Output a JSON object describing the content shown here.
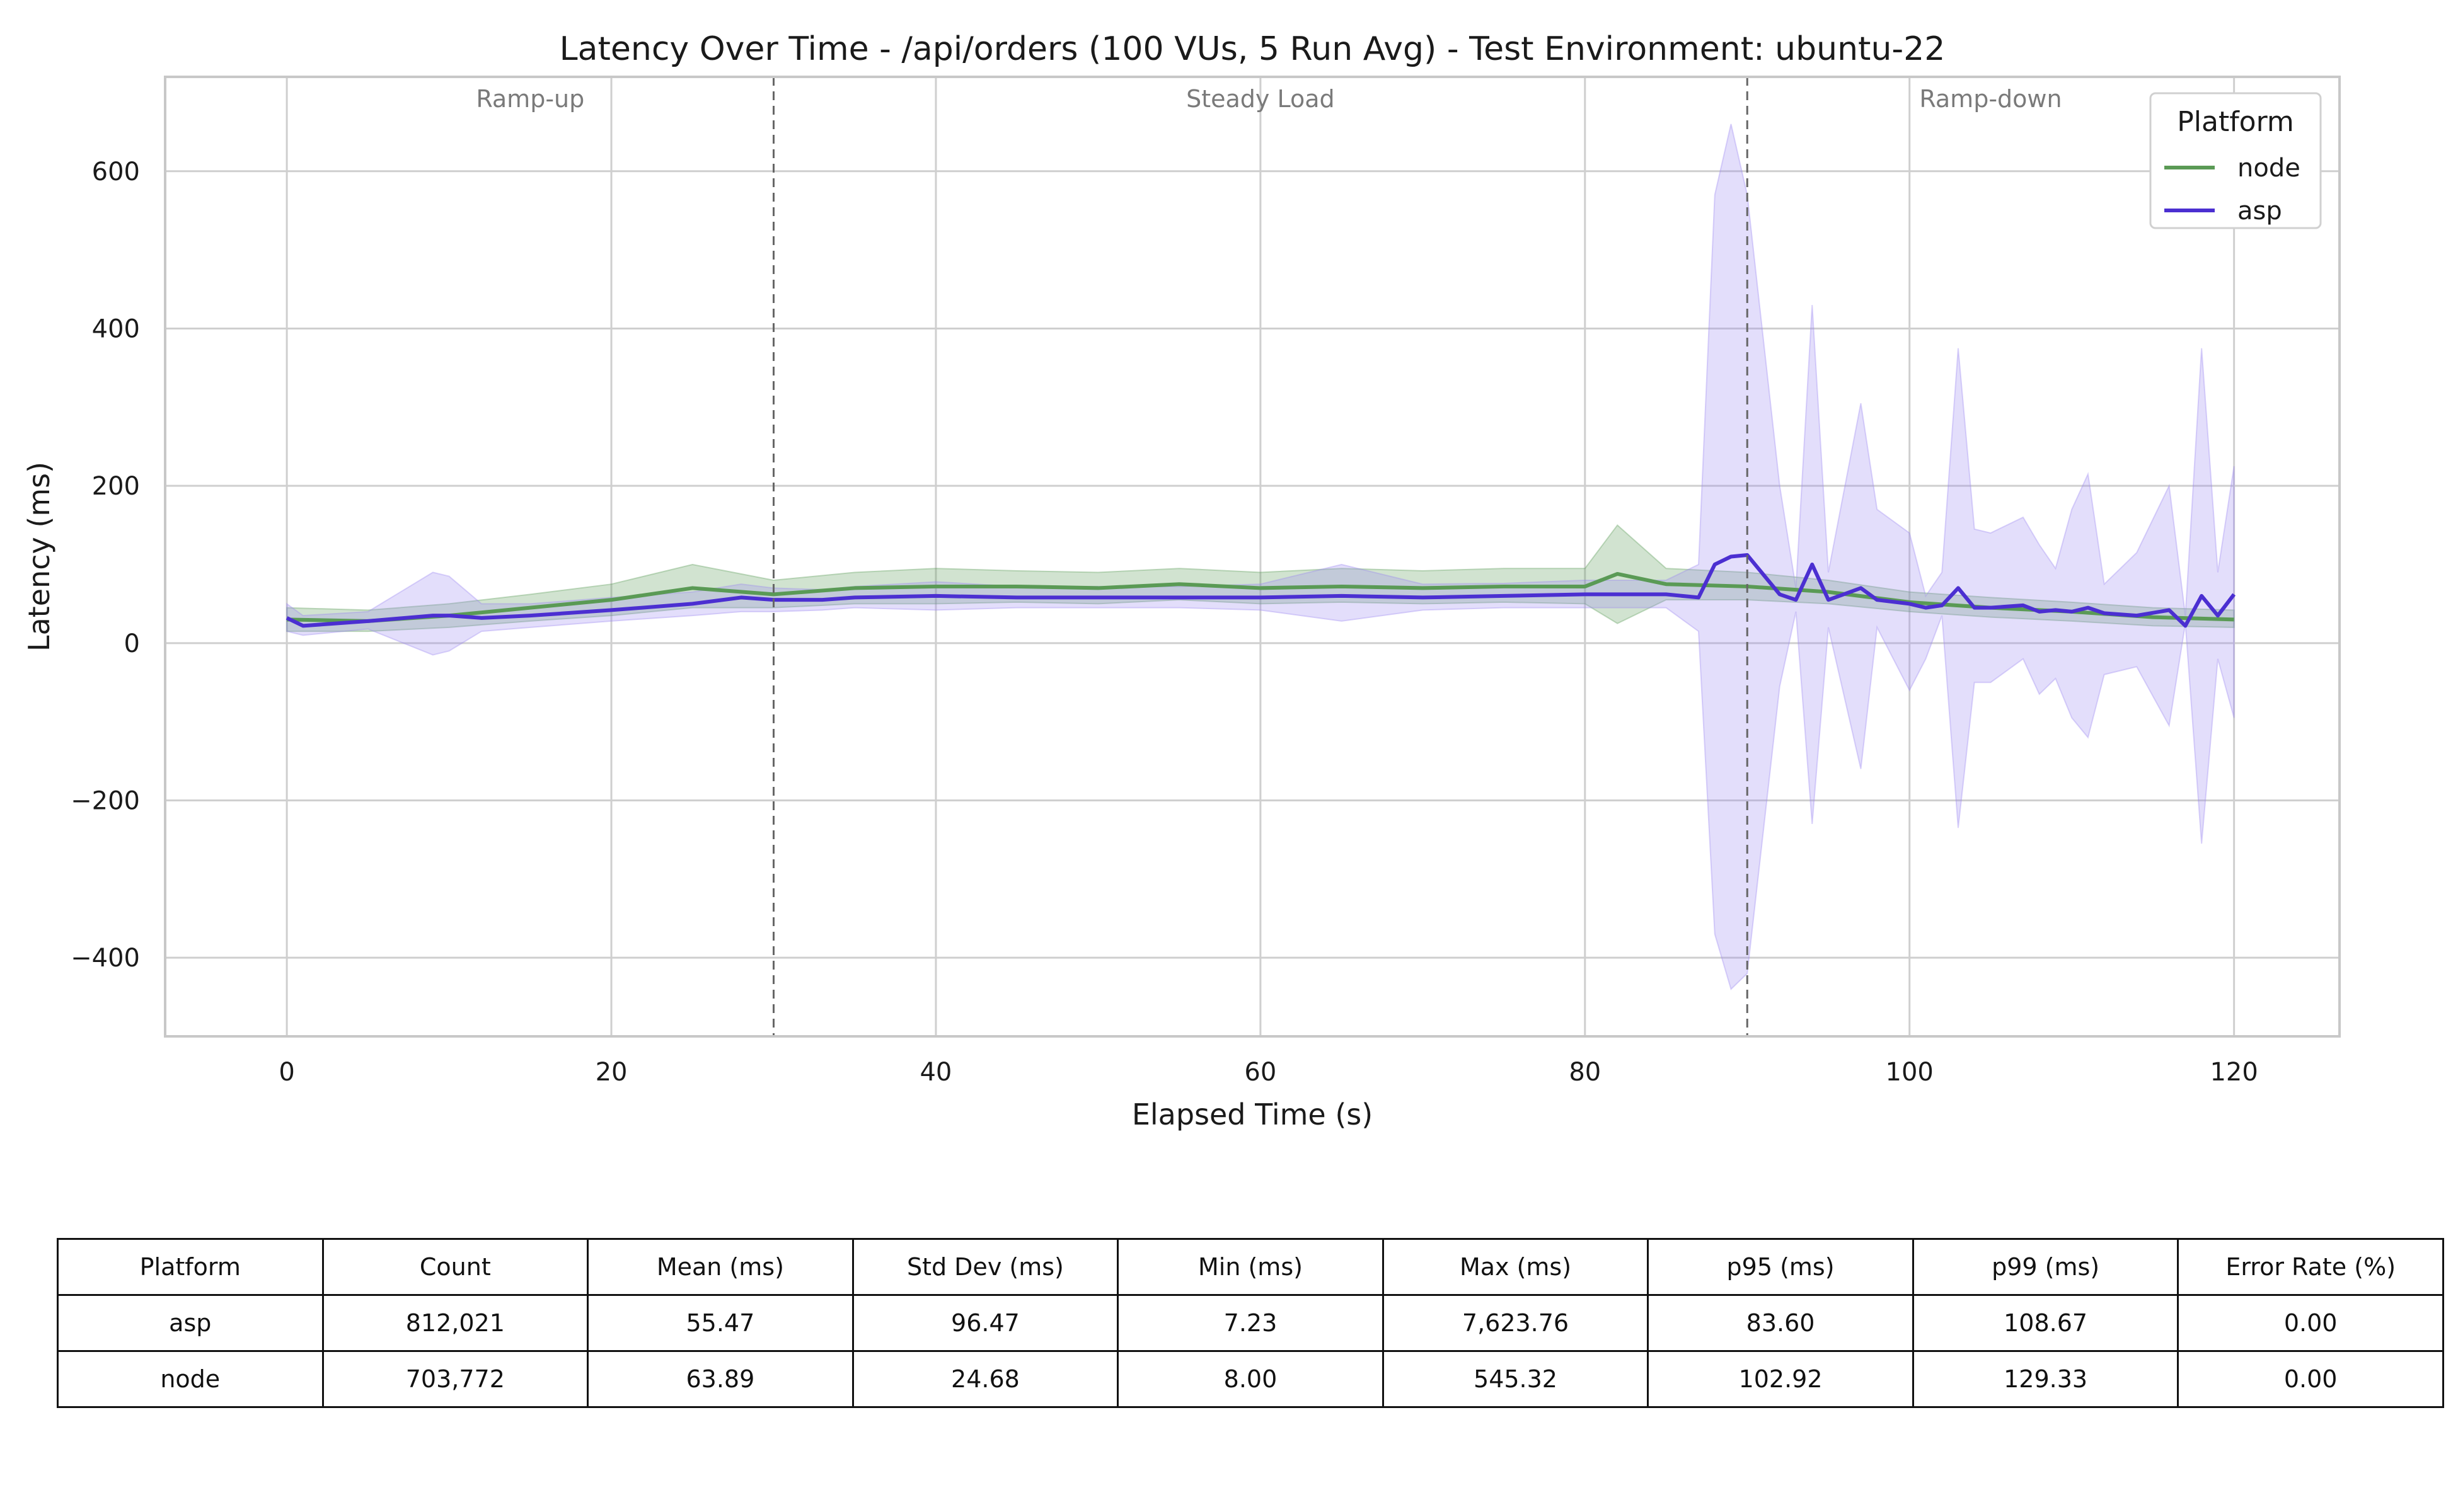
{
  "chart_data": {
    "type": "line",
    "title": "Latency Over Time - /api/orders (100 VUs, 5 Run Avg) - Test Environment: ubuntu-22",
    "xlabel": "Elapsed Time (s)",
    "ylabel": "Latency (ms)",
    "xlim": [
      -7.5,
      126.5
    ],
    "ylim": [
      -500,
      720
    ],
    "xticks": [
      0,
      20,
      40,
      60,
      80,
      100,
      120
    ],
    "yticks": [
      -400,
      -200,
      0,
      200,
      400,
      600
    ],
    "grid": true,
    "legend": {
      "title": "Platform",
      "placement": "top-right"
    },
    "phases": [
      {
        "label": "Ramp-up",
        "center": 15
      },
      {
        "label": "Steady Load",
        "center": 60
      },
      {
        "label": "Ramp-down",
        "center": 105
      }
    ],
    "phase_boundaries": [
      30,
      90
    ],
    "series": [
      {
        "name": "node",
        "color": "#5a9a55",
        "band_color": "#5a9a55",
        "x": [
          0,
          5,
          10,
          15,
          20,
          25,
          30,
          35,
          40,
          45,
          50,
          55,
          60,
          65,
          70,
          75,
          80,
          82,
          85,
          90,
          95,
          100,
          105,
          110,
          115,
          120
        ],
        "y": [
          30,
          28,
          35,
          45,
          55,
          70,
          62,
          70,
          72,
          72,
          70,
          75,
          70,
          72,
          70,
          72,
          72,
          88,
          75,
          72,
          65,
          52,
          45,
          40,
          33,
          30
        ],
        "lower": [
          15,
          15,
          20,
          28,
          35,
          45,
          45,
          50,
          50,
          52,
          50,
          55,
          50,
          52,
          50,
          52,
          50,
          25,
          55,
          55,
          50,
          40,
          33,
          28,
          22,
          20
        ],
        "upper": [
          45,
          42,
          50,
          62,
          75,
          100,
          80,
          90,
          95,
          92,
          90,
          95,
          90,
          95,
          92,
          95,
          95,
          150,
          95,
          90,
          80,
          65,
          58,
          52,
          45,
          42
        ]
      },
      {
        "name": "asp",
        "color": "#4b2fd1",
        "band_color": "#9c87f0",
        "x": [
          0,
          1,
          5,
          9,
          10,
          12,
          15,
          20,
          25,
          28,
          30,
          33,
          35,
          40,
          45,
          50,
          55,
          60,
          65,
          70,
          75,
          80,
          85,
          87,
          88,
          89,
          90,
          92,
          93,
          94,
          95,
          97,
          98,
          100,
          101,
          102,
          103,
          104,
          105,
          107,
          108,
          109,
          110,
          111,
          112,
          114,
          116,
          117,
          118,
          119,
          120
        ],
        "y": [
          32,
          22,
          28,
          35,
          35,
          32,
          35,
          42,
          50,
          58,
          55,
          55,
          58,
          60,
          58,
          58,
          58,
          58,
          60,
          58,
          60,
          62,
          62,
          58,
          100,
          110,
          112,
          62,
          55,
          100,
          55,
          70,
          55,
          50,
          45,
          48,
          70,
          45,
          45,
          48,
          40,
          42,
          40,
          45,
          38,
          35,
          42,
          22,
          60,
          35,
          62
        ],
        "lower": [
          15,
          10,
          18,
          -15,
          -10,
          15,
          20,
          28,
          35,
          40,
          40,
          42,
          45,
          42,
          45,
          45,
          45,
          42,
          28,
          42,
          45,
          45,
          45,
          15,
          -370,
          -440,
          -420,
          -55,
          40,
          -230,
          20,
          -160,
          20,
          -60,
          -20,
          35,
          -235,
          -50,
          -50,
          -20,
          -65,
          -45,
          -95,
          -120,
          -40,
          -30,
          -105,
          25,
          -255,
          -20,
          -95
        ],
        "upper": [
          50,
          35,
          40,
          90,
          85,
          50,
          50,
          58,
          65,
          75,
          70,
          68,
          72,
          78,
          72,
          72,
          72,
          75,
          100,
          75,
          76,
          80,
          80,
          100,
          570,
          660,
          570,
          200,
          70,
          430,
          90,
          305,
          170,
          140,
          60,
          90,
          375,
          145,
          140,
          160,
          125,
          95,
          170,
          215,
          75,
          115,
          200,
          35,
          375,
          90,
          225
        ]
      }
    ]
  },
  "table": {
    "columns": [
      "Platform",
      "Count",
      "Mean (ms)",
      "Std Dev (ms)",
      "Min (ms)",
      "Max (ms)",
      "p95 (ms)",
      "p99 (ms)",
      "Error Rate (%)"
    ],
    "rows": [
      [
        "asp",
        "812,021",
        "55.47",
        "96.47",
        "7.23",
        "7,623.76",
        "83.60",
        "108.67",
        "0.00"
      ],
      [
        "node",
        "703,772",
        "63.89",
        "24.68",
        "8.00",
        "545.32",
        "102.92",
        "129.33",
        "0.00"
      ]
    ]
  }
}
